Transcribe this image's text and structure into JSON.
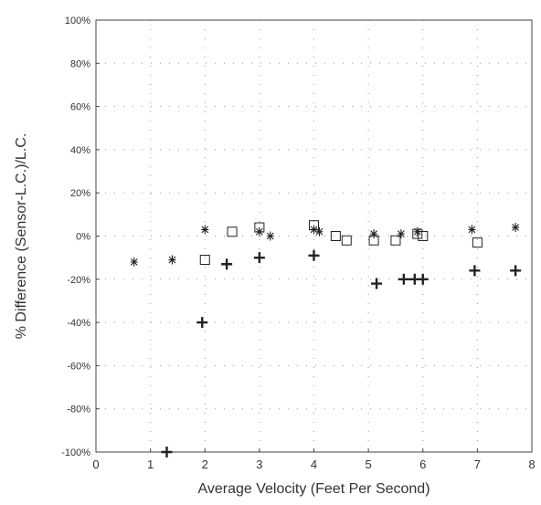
{
  "chart_data": {
    "type": "scatter",
    "title": "",
    "xlabel": "Average Velocity (Feet Per Second)",
    "ylabel": "% Difference (Sensor-L.C.)/L.C.",
    "xlim": [
      0,
      8
    ],
    "ylim": [
      -100,
      100
    ],
    "x_ticks": [
      0,
      1,
      2,
      3,
      4,
      5,
      6,
      7,
      8
    ],
    "y_ticks": [
      -100,
      -80,
      -60,
      -40,
      -20,
      0,
      20,
      40,
      60,
      80,
      100
    ],
    "x_tick_labels": [
      "0",
      "1",
      "2",
      "3",
      "4",
      "5",
      "6",
      "7",
      "8"
    ],
    "y_tick_labels": [
      "-100%",
      "-80%",
      "-60%",
      "-40%",
      "-20%",
      "0%",
      "20%",
      "40%",
      "60%",
      "80%",
      "100%"
    ],
    "grid": true,
    "grid_style": "dotted",
    "legend": "none",
    "colors": {
      "marker": "#222222",
      "grid": "#9a9a9a",
      "frame": "#444444"
    },
    "series": [
      {
        "marker": "asterisk",
        "points": [
          [
            0.7,
            -12
          ],
          [
            1.4,
            -11
          ],
          [
            2.0,
            3
          ],
          [
            3.0,
            2
          ],
          [
            3.2,
            0
          ],
          [
            4.0,
            3
          ],
          [
            4.1,
            2
          ],
          [
            5.1,
            1
          ],
          [
            5.6,
            1
          ],
          [
            5.9,
            2
          ],
          [
            6.9,
            3
          ],
          [
            7.7,
            4
          ]
        ]
      },
      {
        "marker": "square",
        "points": [
          [
            2.0,
            -11
          ],
          [
            2.5,
            2
          ],
          [
            3.0,
            4
          ],
          [
            4.0,
            5
          ],
          [
            4.4,
            0
          ],
          [
            4.6,
            -2
          ],
          [
            5.1,
            -2
          ],
          [
            5.5,
            -2
          ],
          [
            5.9,
            1
          ],
          [
            6.0,
            0
          ],
          [
            7.0,
            -3
          ]
        ]
      },
      {
        "marker": "plus",
        "points": [
          [
            1.3,
            -100
          ],
          [
            1.95,
            -40
          ],
          [
            2.4,
            -13
          ],
          [
            3.0,
            -10
          ],
          [
            4.0,
            -9
          ],
          [
            5.15,
            -22
          ],
          [
            5.65,
            -20
          ],
          [
            5.85,
            -20
          ],
          [
            6.0,
            -20
          ],
          [
            6.95,
            -16
          ],
          [
            7.7,
            -16
          ]
        ]
      }
    ]
  }
}
